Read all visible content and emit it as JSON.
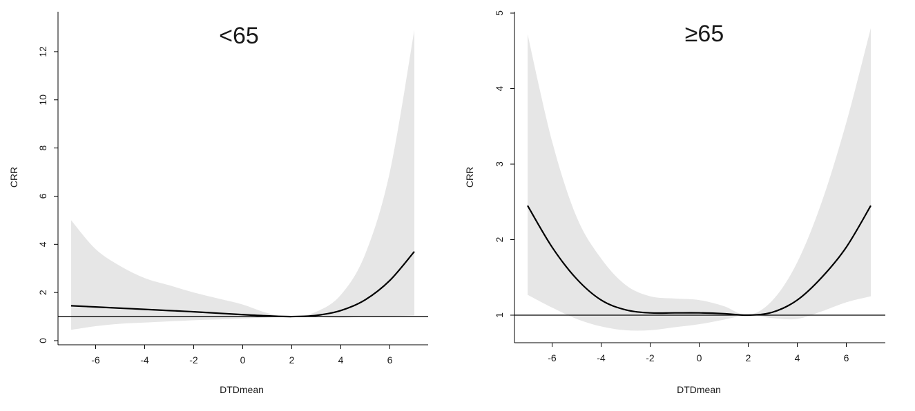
{
  "chart_data": [
    {
      "type": "line",
      "title": "<65",
      "xlabel": "DTDmean",
      "ylabel": "CRR",
      "xlim": [
        -7,
        7
      ],
      "ylim": [
        0,
        13
      ],
      "xticks": [
        "-6",
        "-4",
        "-2",
        "0",
        "2",
        "4",
        "6"
      ],
      "yticks": [
        "0",
        "2",
        "4",
        "6",
        "8",
        "10",
        "12"
      ],
      "reference_line_y": 1,
      "grid": false,
      "band_color": "#e6e6e6",
      "line_color": "#000000",
      "series": [
        {
          "x": [
            -7,
            -6,
            -5,
            -4,
            -3,
            -2,
            -1,
            0,
            1,
            2,
            3,
            4,
            5,
            6,
            7
          ],
          "values": [
            1.45,
            1.4,
            1.35,
            1.3,
            1.25,
            1.2,
            1.14,
            1.08,
            1.03,
            1.0,
            1.05,
            1.25,
            1.7,
            2.5,
            3.7
          ],
          "lower": [
            0.45,
            0.6,
            0.7,
            0.75,
            0.8,
            0.85,
            0.88,
            0.92,
            0.96,
            1.0,
            0.98,
            0.95,
            1.0,
            1.02,
            1.05
          ],
          "upper": [
            5.0,
            3.8,
            3.1,
            2.6,
            2.3,
            2.0,
            1.75,
            1.5,
            1.15,
            1.0,
            1.2,
            1.9,
            3.6,
            7.0,
            12.9
          ]
        }
      ]
    },
    {
      "type": "line",
      "title": "≥65",
      "xlabel": "DTDmean",
      "ylabel": "CRR",
      "xlim": [
        -7,
        7
      ],
      "ylim": [
        0.6,
        5
      ],
      "xticks": [
        "-6",
        "-4",
        "-2",
        "0",
        "2",
        "4",
        "6"
      ],
      "yticks": [
        "1",
        "2",
        "3",
        "4",
        "5"
      ],
      "reference_line_y": 1,
      "grid": false,
      "band_color": "#e6e6e6",
      "line_color": "#000000",
      "series": [
        {
          "x": [
            -7,
            -6,
            -5,
            -4,
            -3,
            -2,
            -1,
            0,
            1,
            2,
            3,
            4,
            5,
            6,
            7
          ],
          "values": [
            2.45,
            1.9,
            1.48,
            1.2,
            1.07,
            1.03,
            1.03,
            1.03,
            1.02,
            1.0,
            1.04,
            1.2,
            1.5,
            1.9,
            2.45
          ],
          "lower": [
            1.27,
            1.1,
            0.95,
            0.85,
            0.8,
            0.8,
            0.84,
            0.88,
            0.94,
            1.0,
            0.96,
            0.95,
            1.05,
            1.17,
            1.25
          ],
          "upper": [
            4.72,
            3.3,
            2.3,
            1.75,
            1.4,
            1.25,
            1.22,
            1.2,
            1.12,
            1.0,
            1.2,
            1.7,
            2.5,
            3.55,
            4.8
          ]
        }
      ]
    }
  ]
}
